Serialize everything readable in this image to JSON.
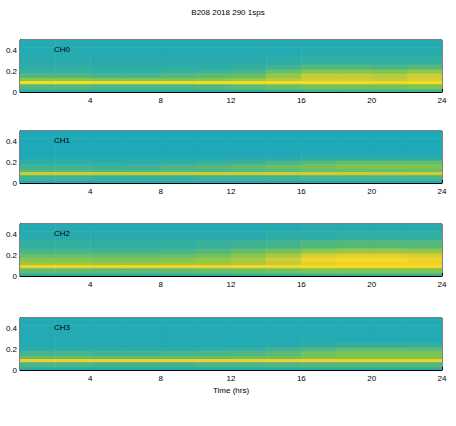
{
  "title": "B208 2018 290 1sps",
  "chart_data": [
    {
      "type": "heatmap",
      "annotation": "CH0",
      "xlim": [
        0,
        24
      ],
      "xticks": [
        4,
        8,
        12,
        16,
        20,
        24
      ],
      "ylim": [
        0,
        0.5
      ],
      "yticks": [
        0,
        0.2,
        0.4
      ],
      "color_range": [
        0,
        1
      ],
      "x_edges": [
        0,
        2,
        4,
        6,
        8,
        10,
        12,
        14,
        16,
        18,
        20,
        22,
        24
      ],
      "y_edges": [
        0,
        0.03,
        0.08,
        0.11,
        0.14,
        0.18,
        0.22,
        0.27,
        0.35,
        0.43,
        0.5
      ],
      "cells": [
        [
          0.45,
          0.45,
          0.45,
          0.45,
          0.45,
          0.45,
          0.46,
          0.47,
          0.48,
          0.48,
          0.48,
          0.48
        ],
        [
          0.52,
          0.52,
          0.5,
          0.5,
          0.5,
          0.52,
          0.54,
          0.56,
          0.58,
          0.58,
          0.58,
          0.6
        ],
        [
          0.86,
          0.86,
          0.85,
          0.85,
          0.85,
          0.85,
          0.86,
          0.86,
          0.86,
          0.86,
          0.85,
          0.86
        ],
        [
          0.62,
          0.62,
          0.6,
          0.6,
          0.6,
          0.62,
          0.64,
          0.7,
          0.74,
          0.74,
          0.72,
          0.75
        ],
        [
          0.52,
          0.52,
          0.5,
          0.5,
          0.52,
          0.54,
          0.56,
          0.64,
          0.72,
          0.72,
          0.7,
          0.74
        ],
        [
          0.47,
          0.47,
          0.46,
          0.46,
          0.47,
          0.48,
          0.5,
          0.56,
          0.62,
          0.62,
          0.6,
          0.64
        ],
        [
          0.45,
          0.45,
          0.45,
          0.45,
          0.45,
          0.45,
          0.46,
          0.48,
          0.52,
          0.52,
          0.5,
          0.52
        ],
        [
          0.44,
          0.44,
          0.44,
          0.44,
          0.44,
          0.44,
          0.44,
          0.45,
          0.46,
          0.46,
          0.46,
          0.46
        ],
        [
          0.43,
          0.43,
          0.43,
          0.43,
          0.43,
          0.43,
          0.43,
          0.43,
          0.44,
          0.44,
          0.44,
          0.44
        ],
        [
          0.43,
          0.43,
          0.43,
          0.43,
          0.43,
          0.43,
          0.43,
          0.43,
          0.43,
          0.43,
          0.43,
          0.43
        ]
      ]
    },
    {
      "type": "heatmap",
      "annotation": "CH1",
      "xlim": [
        0,
        24
      ],
      "xticks": [
        4,
        8,
        12,
        16,
        20,
        24
      ],
      "ylim": [
        0,
        0.5
      ],
      "yticks": [
        0,
        0.2,
        0.4
      ],
      "color_range": [
        0,
        1
      ],
      "x_edges": [
        0,
        2,
        4,
        6,
        8,
        10,
        12,
        14,
        16,
        18,
        20,
        22,
        24
      ],
      "y_edges": [
        0,
        0.03,
        0.08,
        0.11,
        0.14,
        0.18,
        0.22,
        0.27,
        0.35,
        0.43,
        0.5
      ],
      "cells": [
        [
          0.43,
          0.43,
          0.43,
          0.43,
          0.43,
          0.43,
          0.43,
          0.43,
          0.43,
          0.43,
          0.43,
          0.43
        ],
        [
          0.48,
          0.48,
          0.47,
          0.47,
          0.47,
          0.48,
          0.48,
          0.49,
          0.5,
          0.5,
          0.5,
          0.5
        ],
        [
          0.74,
          0.74,
          0.73,
          0.73,
          0.73,
          0.74,
          0.74,
          0.74,
          0.74,
          0.74,
          0.73,
          0.74
        ],
        [
          0.52,
          0.52,
          0.51,
          0.51,
          0.52,
          0.52,
          0.53,
          0.54,
          0.56,
          0.56,
          0.56,
          0.57
        ],
        [
          0.48,
          0.48,
          0.47,
          0.48,
          0.5,
          0.52,
          0.54,
          0.56,
          0.58,
          0.6,
          0.6,
          0.6
        ],
        [
          0.45,
          0.45,
          0.45,
          0.45,
          0.46,
          0.47,
          0.48,
          0.5,
          0.53,
          0.55,
          0.55,
          0.55
        ],
        [
          0.43,
          0.43,
          0.43,
          0.43,
          0.43,
          0.43,
          0.44,
          0.44,
          0.45,
          0.45,
          0.45,
          0.45
        ],
        [
          0.42,
          0.42,
          0.42,
          0.42,
          0.42,
          0.42,
          0.42,
          0.42,
          0.42,
          0.42,
          0.42,
          0.42
        ],
        [
          0.42,
          0.42,
          0.42,
          0.42,
          0.42,
          0.42,
          0.42,
          0.42,
          0.42,
          0.42,
          0.42,
          0.42
        ],
        [
          0.42,
          0.42,
          0.42,
          0.42,
          0.42,
          0.42,
          0.42,
          0.42,
          0.42,
          0.42,
          0.42,
          0.42
        ]
      ]
    },
    {
      "type": "heatmap",
      "annotation": "CH2",
      "xlim": [
        0,
        24
      ],
      "xticks": [
        4,
        8,
        12,
        16,
        20,
        24
      ],
      "ylim": [
        0,
        0.5
      ],
      "yticks": [
        0,
        0.2,
        0.4
      ],
      "color_range": [
        0,
        1
      ],
      "x_edges": [
        0,
        2,
        4,
        6,
        8,
        10,
        12,
        14,
        16,
        18,
        20,
        22,
        24
      ],
      "y_edges": [
        0,
        0.03,
        0.08,
        0.11,
        0.14,
        0.18,
        0.22,
        0.27,
        0.35,
        0.43,
        0.5
      ],
      "cells": [
        [
          0.45,
          0.45,
          0.45,
          0.45,
          0.45,
          0.45,
          0.46,
          0.46,
          0.47,
          0.47,
          0.47,
          0.47
        ],
        [
          0.55,
          0.55,
          0.54,
          0.54,
          0.55,
          0.56,
          0.57,
          0.58,
          0.6,
          0.6,
          0.6,
          0.6
        ],
        [
          0.82,
          0.82,
          0.82,
          0.82,
          0.82,
          0.82,
          0.83,
          0.83,
          0.84,
          0.84,
          0.84,
          0.84
        ],
        [
          0.65,
          0.65,
          0.64,
          0.64,
          0.65,
          0.66,
          0.68,
          0.72,
          0.78,
          0.8,
          0.8,
          0.8
        ],
        [
          0.62,
          0.62,
          0.6,
          0.6,
          0.62,
          0.64,
          0.68,
          0.74,
          0.82,
          0.85,
          0.85,
          0.82
        ],
        [
          0.55,
          0.55,
          0.54,
          0.54,
          0.55,
          0.58,
          0.62,
          0.68,
          0.75,
          0.78,
          0.78,
          0.76
        ],
        [
          0.5,
          0.5,
          0.49,
          0.49,
          0.5,
          0.52,
          0.55,
          0.58,
          0.63,
          0.65,
          0.65,
          0.64
        ],
        [
          0.46,
          0.46,
          0.46,
          0.46,
          0.46,
          0.47,
          0.48,
          0.49,
          0.51,
          0.52,
          0.52,
          0.52
        ],
        [
          0.44,
          0.44,
          0.44,
          0.44,
          0.44,
          0.44,
          0.44,
          0.45,
          0.45,
          0.46,
          0.46,
          0.46
        ],
        [
          0.43,
          0.43,
          0.43,
          0.43,
          0.43,
          0.43,
          0.43,
          0.43,
          0.44,
          0.44,
          0.44,
          0.44
        ]
      ]
    },
    {
      "type": "heatmap",
      "annotation": "CH3",
      "xlabel": "Time (hrs)",
      "xlim": [
        0,
        24
      ],
      "xticks": [
        4,
        8,
        12,
        16,
        20,
        24
      ],
      "ylim": [
        0,
        0.5
      ],
      "yticks": [
        0,
        0.2,
        0.4
      ],
      "color_range": [
        0,
        1
      ],
      "x_edges": [
        0,
        2,
        4,
        6,
        8,
        10,
        12,
        14,
        16,
        18,
        20,
        22,
        24
      ],
      "y_edges": [
        0,
        0.03,
        0.08,
        0.11,
        0.14,
        0.18,
        0.22,
        0.27,
        0.35,
        0.43,
        0.5
      ],
      "cells": [
        [
          0.44,
          0.44,
          0.44,
          0.44,
          0.44,
          0.44,
          0.44,
          0.44,
          0.45,
          0.45,
          0.45,
          0.45
        ],
        [
          0.5,
          0.5,
          0.49,
          0.49,
          0.49,
          0.5,
          0.5,
          0.51,
          0.52,
          0.52,
          0.52,
          0.52
        ],
        [
          0.8,
          0.8,
          0.8,
          0.8,
          0.8,
          0.8,
          0.8,
          0.8,
          0.8,
          0.8,
          0.8,
          0.8
        ],
        [
          0.55,
          0.55,
          0.54,
          0.54,
          0.54,
          0.55,
          0.56,
          0.57,
          0.59,
          0.6,
          0.6,
          0.6
        ],
        [
          0.5,
          0.5,
          0.49,
          0.49,
          0.5,
          0.51,
          0.52,
          0.54,
          0.58,
          0.6,
          0.6,
          0.6
        ],
        [
          0.45,
          0.45,
          0.45,
          0.45,
          0.45,
          0.46,
          0.47,
          0.49,
          0.52,
          0.55,
          0.55,
          0.54
        ],
        [
          0.43,
          0.43,
          0.43,
          0.43,
          0.43,
          0.43,
          0.43,
          0.44,
          0.45,
          0.46,
          0.46,
          0.46
        ],
        [
          0.43,
          0.43,
          0.43,
          0.43,
          0.43,
          0.43,
          0.43,
          0.43,
          0.43,
          0.43,
          0.43,
          0.43
        ],
        [
          0.43,
          0.43,
          0.43,
          0.43,
          0.43,
          0.43,
          0.43,
          0.43,
          0.43,
          0.43,
          0.43,
          0.43
        ],
        [
          0.43,
          0.43,
          0.43,
          0.43,
          0.43,
          0.43,
          0.43,
          0.43,
          0.43,
          0.43,
          0.43,
          0.43
        ]
      ]
    }
  ]
}
